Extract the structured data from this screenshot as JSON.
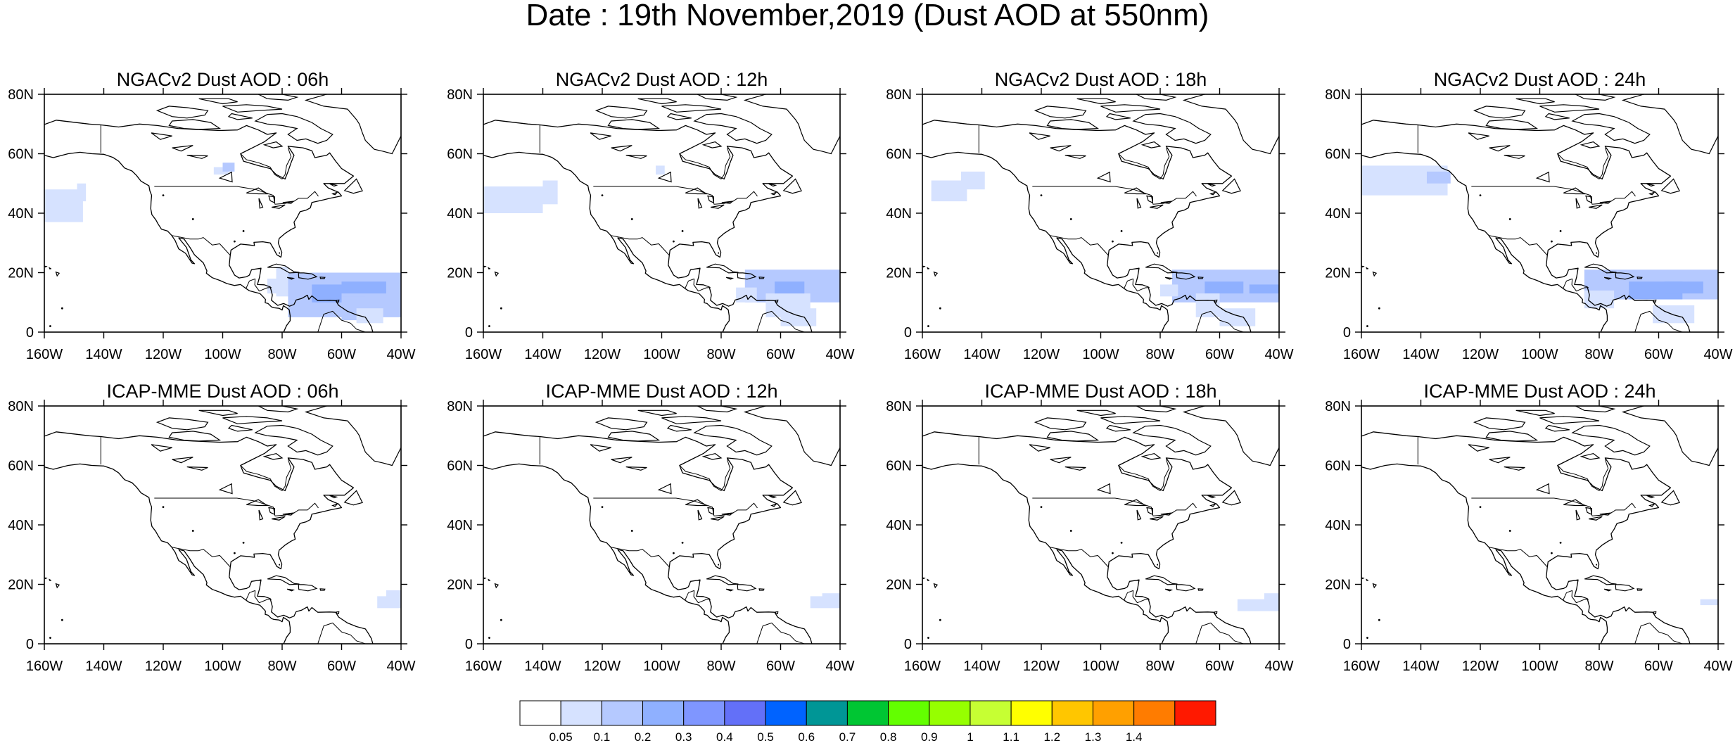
{
  "title": "Date : 19th November,2019 (Dust AOD at 550nm)",
  "axes": {
    "lat_ticks": [
      "80N",
      "60N",
      "40N",
      "20N",
      "0"
    ],
    "lon_ticks": [
      "160W",
      "140W",
      "120W",
      "100W",
      "80W",
      "60W",
      "40W"
    ],
    "lon_range": [
      -160,
      -40
    ],
    "lat_range": [
      0,
      80
    ]
  },
  "panels": [
    {
      "title": "NGACv2 Dust AOD : 06h",
      "row": 0,
      "col": 0
    },
    {
      "title": "NGACv2 Dust AOD : 12h",
      "row": 0,
      "col": 1
    },
    {
      "title": "NGACv2 Dust AOD : 18h",
      "row": 0,
      "col": 2
    },
    {
      "title": "NGACv2 Dust AOD : 24h",
      "row": 0,
      "col": 3
    },
    {
      "title": "ICAP-MME Dust AOD : 06h",
      "row": 1,
      "col": 0
    },
    {
      "title": "ICAP-MME Dust AOD : 12h",
      "row": 1,
      "col": 1
    },
    {
      "title": "ICAP-MME Dust AOD : 18h",
      "row": 1,
      "col": 2
    },
    {
      "title": "ICAP-MME Dust AOD : 24h",
      "row": 1,
      "col": 3
    }
  ],
  "colorbar": {
    "labels": [
      "0.05",
      "0.1",
      "0.2",
      "0.3",
      "0.4",
      "0.5",
      "0.6",
      "0.7",
      "0.8",
      "0.9",
      "1",
      "1.1",
      "1.2",
      "1.3",
      "1.4"
    ],
    "colors": [
      "#ffffff",
      "#d6e2ff",
      "#b5c9ff",
      "#8fb0ff",
      "#7f96ff",
      "#6370f8",
      "#0063ff",
      "#009696",
      "#00c633",
      "#63ff00",
      "#96ff00",
      "#c6ff33",
      "#ffff00",
      "#ffc600",
      "#ffa000",
      "#ff7c00",
      "#ff1900"
    ]
  }
}
